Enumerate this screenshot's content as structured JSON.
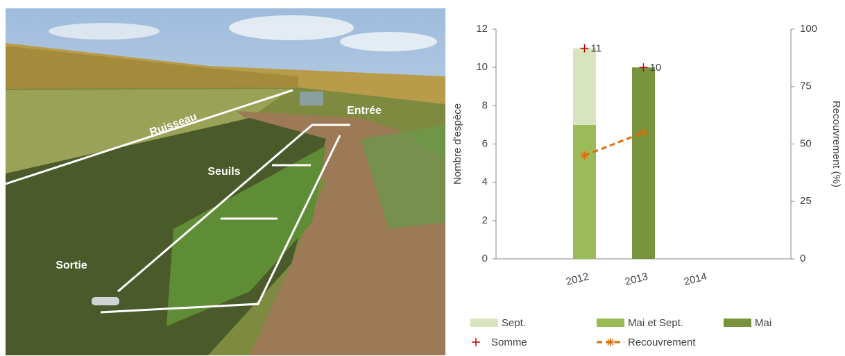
{
  "photo": {
    "labels": [
      "Ruisseau",
      "Entrée",
      "Seuils",
      "Sortie"
    ]
  },
  "chart_data": {
    "type": "bar",
    "categories": [
      "2012",
      "2013",
      "2014"
    ],
    "series": [
      {
        "name": "Sept.",
        "color": "#d7e4bd",
        "type": "bar",
        "values": [
          4,
          null,
          null
        ]
      },
      {
        "name": "Mai et Sept.",
        "color": "#9bbb59",
        "type": "bar",
        "values": [
          7,
          null,
          null
        ]
      },
      {
        "name": "Mai",
        "color": "#77933c",
        "type": "bar",
        "values": [
          null,
          10,
          null
        ]
      },
      {
        "name": "Somme",
        "color": "#c00000",
        "type": "scatter",
        "values": [
          11,
          10,
          null
        ]
      },
      {
        "name": "Recouvrement",
        "color": "#e46c0a",
        "type": "line",
        "axis": "y2",
        "values": [
          45,
          55,
          null
        ]
      }
    ],
    "ylabel": "Nombre d'espèce",
    "y2label": "Recouvrement (%)",
    "ylim": [
      0,
      12
    ],
    "yticks": [
      0,
      2,
      4,
      6,
      8,
      10,
      12
    ],
    "y2lim": [
      0,
      100
    ],
    "y2ticks": [
      0,
      25,
      50,
      75,
      100
    ],
    "grid": false
  }
}
